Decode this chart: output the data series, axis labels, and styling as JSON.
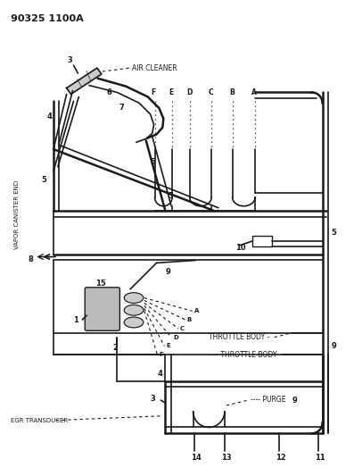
{
  "title": "90325 1100A",
  "bg_color": "#ffffff",
  "line_color": "#1a1a1a",
  "text_color": "#1a1a1a",
  "fig_width": 3.97,
  "fig_height": 5.33,
  "dpi": 100,
  "labels": {
    "air_cleaner": "AIR CLEANER",
    "throttle_body1": "THROTTLE BODY",
    "throttle_body2": "THROTTLE BODY",
    "purge": "PURGE",
    "egr_transducer": "EGR TRANSDUCER",
    "vapor_canister": "VAPOR CANISTER END"
  }
}
